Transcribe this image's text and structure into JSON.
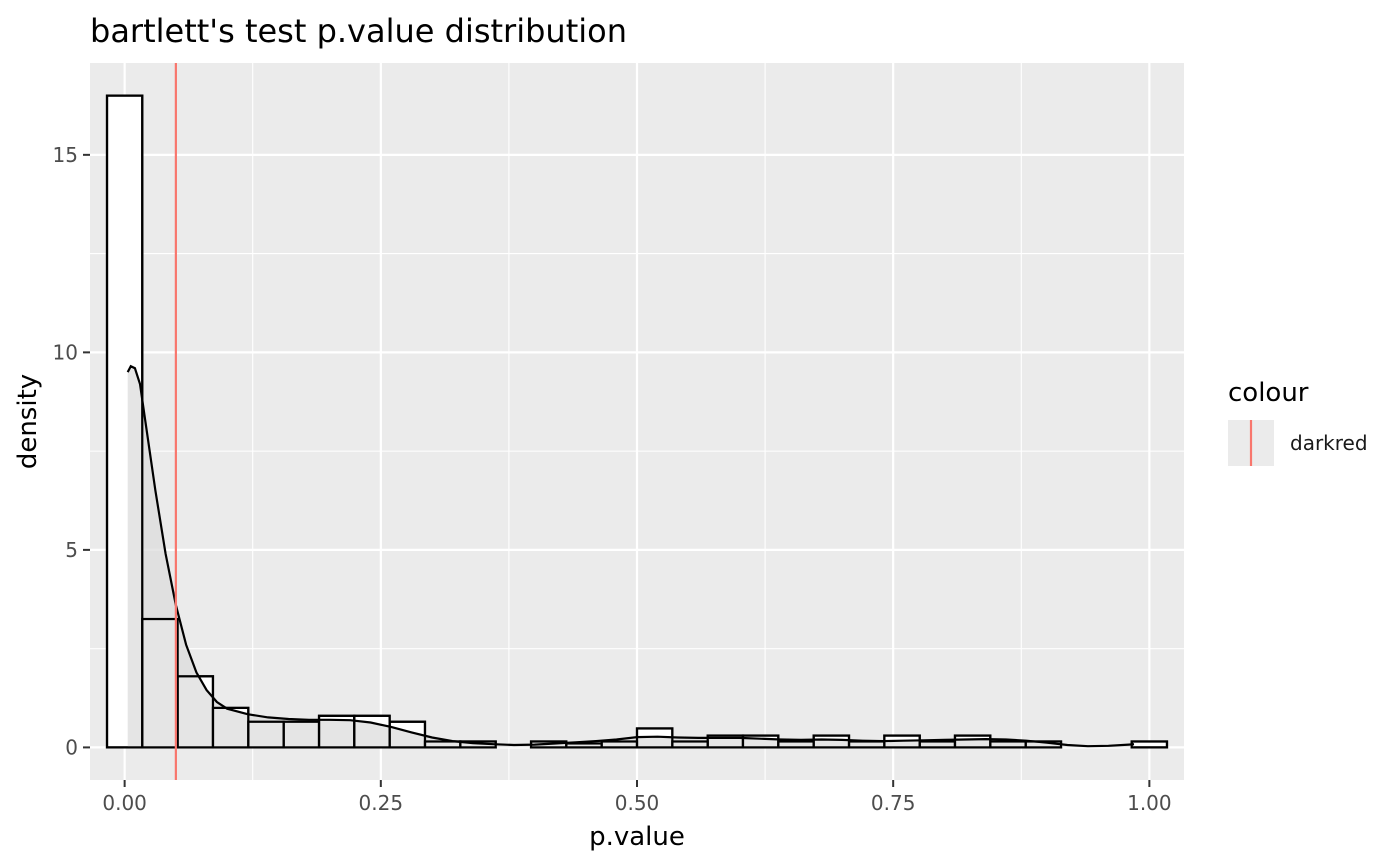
{
  "chart_data": {
    "type": "bar",
    "title": "bartlett's test p.value distribution",
    "xlabel": "p.value",
    "ylabel": "density",
    "xlim": [
      -0.0338,
      1.0338
    ],
    "ylim": [
      -0.825,
      17.325
    ],
    "x_ticks": [
      0.0,
      0.25,
      0.5,
      0.75,
      1.0
    ],
    "x_tick_labels": [
      "0.00",
      "0.25",
      "0.50",
      "0.75",
      "1.00"
    ],
    "y_ticks": [
      0,
      5,
      10,
      15
    ],
    "y_tick_labels": [
      "0",
      "5",
      "10",
      "15"
    ],
    "grid": true,
    "bin_width": 0.0345,
    "bins": [
      {
        "x0": -0.0172,
        "x1": 0.0172,
        "density": 16.5
      },
      {
        "x0": 0.0172,
        "x1": 0.0517,
        "density": 3.25
      },
      {
        "x0": 0.0517,
        "x1": 0.0862,
        "density": 1.8
      },
      {
        "x0": 0.0862,
        "x1": 0.1207,
        "density": 1.0
      },
      {
        "x0": 0.1207,
        "x1": 0.1552,
        "density": 0.65
      },
      {
        "x0": 0.1552,
        "x1": 0.1897,
        "density": 0.65
      },
      {
        "x0": 0.1897,
        "x1": 0.2241,
        "density": 0.8
      },
      {
        "x0": 0.2241,
        "x1": 0.2586,
        "density": 0.8
      },
      {
        "x0": 0.2586,
        "x1": 0.2931,
        "density": 0.65
      },
      {
        "x0": 0.2931,
        "x1": 0.3276,
        "density": 0.15
      },
      {
        "x0": 0.3276,
        "x1": 0.3621,
        "density": 0.15
      },
      {
        "x0": 0.3621,
        "x1": 0.3966,
        "density": 0.0
      },
      {
        "x0": 0.3966,
        "x1": 0.431,
        "density": 0.15
      },
      {
        "x0": 0.431,
        "x1": 0.4655,
        "density": 0.1
      },
      {
        "x0": 0.4655,
        "x1": 0.5,
        "density": 0.15
      },
      {
        "x0": 0.5,
        "x1": 0.5345,
        "density": 0.48
      },
      {
        "x0": 0.5345,
        "x1": 0.569,
        "density": 0.15
      },
      {
        "x0": 0.569,
        "x1": 0.6034,
        "density": 0.3
      },
      {
        "x0": 0.6034,
        "x1": 0.6379,
        "density": 0.3
      },
      {
        "x0": 0.6379,
        "x1": 0.6724,
        "density": 0.15
      },
      {
        "x0": 0.6724,
        "x1": 0.7069,
        "density": 0.3
      },
      {
        "x0": 0.7069,
        "x1": 0.7414,
        "density": 0.15
      },
      {
        "x0": 0.7414,
        "x1": 0.7759,
        "density": 0.3
      },
      {
        "x0": 0.7759,
        "x1": 0.8103,
        "density": 0.15
      },
      {
        "x0": 0.8103,
        "x1": 0.8448,
        "density": 0.3
      },
      {
        "x0": 0.8448,
        "x1": 0.8793,
        "density": 0.15
      },
      {
        "x0": 0.8793,
        "x1": 0.9138,
        "density": 0.15
      },
      {
        "x0": 0.9138,
        "x1": 0.9483,
        "density": 0.0
      },
      {
        "x0": 0.9483,
        "x1": 0.9828,
        "density": 0.0
      },
      {
        "x0": 0.9828,
        "x1": 1.0172,
        "density": 0.15
      }
    ],
    "density_curve": {
      "x": [
        0.003,
        0.006,
        0.01,
        0.015,
        0.02,
        0.03,
        0.04,
        0.05,
        0.06,
        0.07,
        0.08,
        0.09,
        0.1,
        0.12,
        0.14,
        0.16,
        0.18,
        0.2,
        0.22,
        0.24,
        0.26,
        0.28,
        0.3,
        0.32,
        0.34,
        0.36,
        0.38,
        0.4,
        0.42,
        0.44,
        0.46,
        0.48,
        0.5,
        0.52,
        0.54,
        0.56,
        0.58,
        0.6,
        0.62,
        0.64,
        0.66,
        0.68,
        0.7,
        0.72,
        0.74,
        0.76,
        0.78,
        0.8,
        0.82,
        0.84,
        0.86,
        0.88,
        0.9,
        0.92,
        0.94,
        0.96,
        0.98,
        0.985
      ],
      "y": [
        9.5,
        9.65,
        9.6,
        9.2,
        8.3,
        6.5,
        4.9,
        3.6,
        2.6,
        1.9,
        1.45,
        1.15,
        0.98,
        0.84,
        0.76,
        0.72,
        0.7,
        0.7,
        0.69,
        0.63,
        0.52,
        0.38,
        0.25,
        0.16,
        0.11,
        0.08,
        0.06,
        0.07,
        0.1,
        0.13,
        0.16,
        0.2,
        0.26,
        0.27,
        0.25,
        0.24,
        0.24,
        0.24,
        0.22,
        0.2,
        0.19,
        0.2,
        0.19,
        0.17,
        0.16,
        0.17,
        0.18,
        0.19,
        0.2,
        0.21,
        0.2,
        0.17,
        0.12,
        0.06,
        0.03,
        0.04,
        0.07,
        0.08
      ]
    },
    "vline": {
      "x": 0.05,
      "color": "#F8766D"
    },
    "legend": {
      "title": "colour",
      "entries": [
        "darkred"
      ],
      "placement": "right"
    },
    "colors": {
      "panel_bg": "#EBEBEB",
      "grid": "#FFFFFF",
      "bar_fill": "#FFFFFF",
      "bar_stroke": "#000000",
      "density_fill": "#DCDCDC",
      "vline": "#F8766D"
    }
  }
}
